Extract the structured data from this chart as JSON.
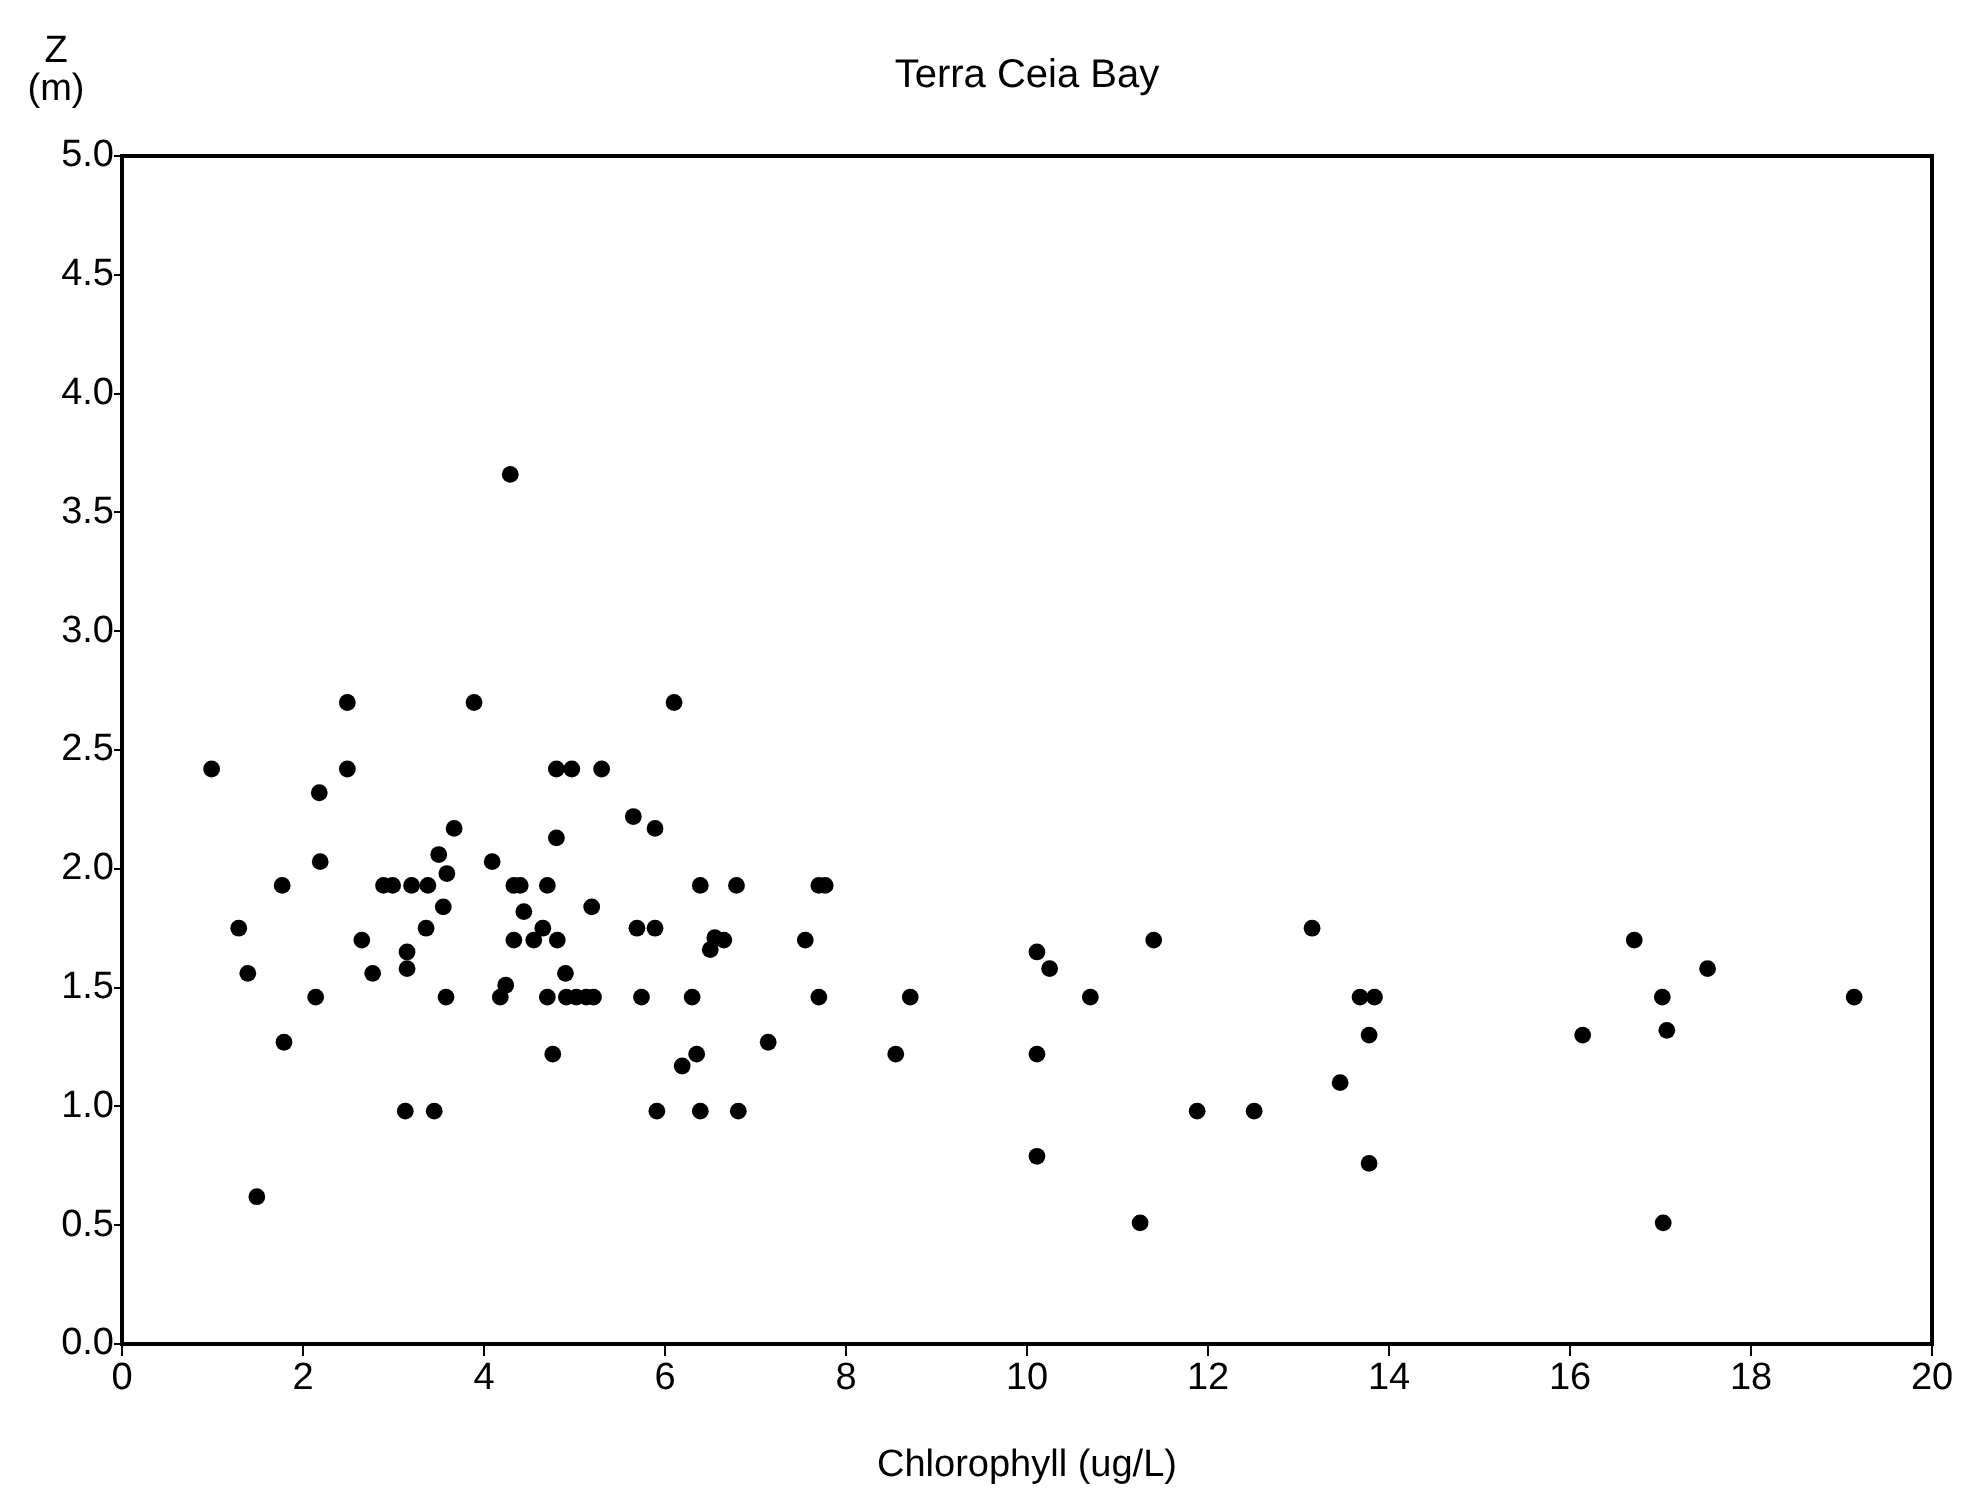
{
  "chart_data": {
    "type": "scatter",
    "title": "Terra Ceia Bay",
    "xlabel": "Chlorophyll (ug/L)",
    "ylabel": "Z (m)",
    "xlim": [
      0,
      20
    ],
    "xticks": [
      0,
      2,
      4,
      6,
      8,
      10,
      12,
      14,
      16,
      18,
      20
    ],
    "ylim": [
      0,
      5
    ],
    "yticks": [
      {
        "value": 0,
        "label": "0.0"
      },
      {
        "value": 0.5,
        "label": "0.5"
      },
      {
        "value": 1,
        "label": "1.0"
      },
      {
        "value": 1.5,
        "label": "1.5"
      },
      {
        "value": 2,
        "label": "2.0"
      },
      {
        "value": 2.5,
        "label": "2.5"
      },
      {
        "value": 3,
        "label": "3.0"
      },
      {
        "value": 3.5,
        "label": "3.5"
      },
      {
        "value": 4,
        "label": "4.0"
      },
      {
        "value": 4.5,
        "label": "4.5"
      },
      {
        "value": 5,
        "label": "5.0"
      }
    ],
    "marker": "circle",
    "grid": false,
    "legend": false,
    "series": [
      {
        "color": "#000000",
        "x": [
          4.29,
          2.49,
          3.89,
          0.99,
          2.49,
          2.18,
          3.67,
          3.5,
          3.59,
          2.19,
          4.09,
          1.77,
          2.89,
          2.99,
          3.2,
          3.38,
          4.33,
          4.4,
          4.7,
          3.55,
          1.29,
          2.65,
          3.36,
          4.44,
          3.15,
          4.33,
          4.55,
          4.65,
          4.81,
          1.39,
          2.77,
          3.15,
          2.14,
          3.58,
          4.18,
          4.24,
          4.7,
          4.9,
          1.79,
          4.76,
          3.13,
          3.45,
          1.49,
          6.1,
          4.8,
          4.97,
          5.3,
          5.65,
          5.89,
          4.8,
          6.39,
          6.79,
          7.7,
          7.77,
          5.19,
          5.69,
          5.89,
          6.55,
          6.65,
          6.5,
          7.55,
          4.91,
          5.02,
          5.13,
          5.21,
          5.74,
          6.3,
          7.7,
          8.71,
          6.19,
          6.35,
          7.14,
          8.55,
          5.91,
          6.39,
          6.81,
          10.11,
          10.25,
          10.7,
          11.4,
          13.15,
          13.68,
          13.84,
          13.78,
          13.46,
          10.11,
          11.88,
          12.51,
          10.11,
          13.78,
          11.25,
          16.71,
          17.52,
          17.02,
          19.14,
          16.14,
          17.07,
          17.03
        ],
        "values": [
          3.66,
          2.7,
          2.7,
          2.42,
          2.42,
          2.32,
          2.17,
          2.06,
          1.98,
          2.03,
          2.03,
          1.93,
          1.93,
          1.93,
          1.93,
          1.93,
          1.93,
          1.93,
          1.93,
          1.84,
          1.75,
          1.7,
          1.75,
          1.82,
          1.65,
          1.7,
          1.7,
          1.75,
          1.7,
          1.56,
          1.56,
          1.58,
          1.46,
          1.46,
          1.46,
          1.51,
          1.46,
          1.56,
          1.27,
          1.22,
          0.98,
          0.98,
          0.62,
          2.7,
          2.42,
          2.42,
          2.42,
          2.22,
          2.17,
          2.13,
          1.93,
          1.93,
          1.93,
          1.93,
          1.84,
          1.75,
          1.75,
          1.71,
          1.7,
          1.66,
          1.7,
          1.46,
          1.46,
          1.46,
          1.46,
          1.46,
          1.46,
          1.46,
          1.46,
          1.17,
          1.22,
          1.27,
          1.22,
          0.98,
          0.98,
          0.98,
          1.65,
          1.58,
          1.46,
          1.7,
          1.75,
          1.46,
          1.46,
          1.3,
          1.1,
          1.22,
          0.98,
          0.98,
          0.79,
          0.76,
          0.51,
          1.7,
          1.58,
          1.46,
          1.46,
          1.3,
          1.32,
          0.51
        ]
      }
    ]
  }
}
